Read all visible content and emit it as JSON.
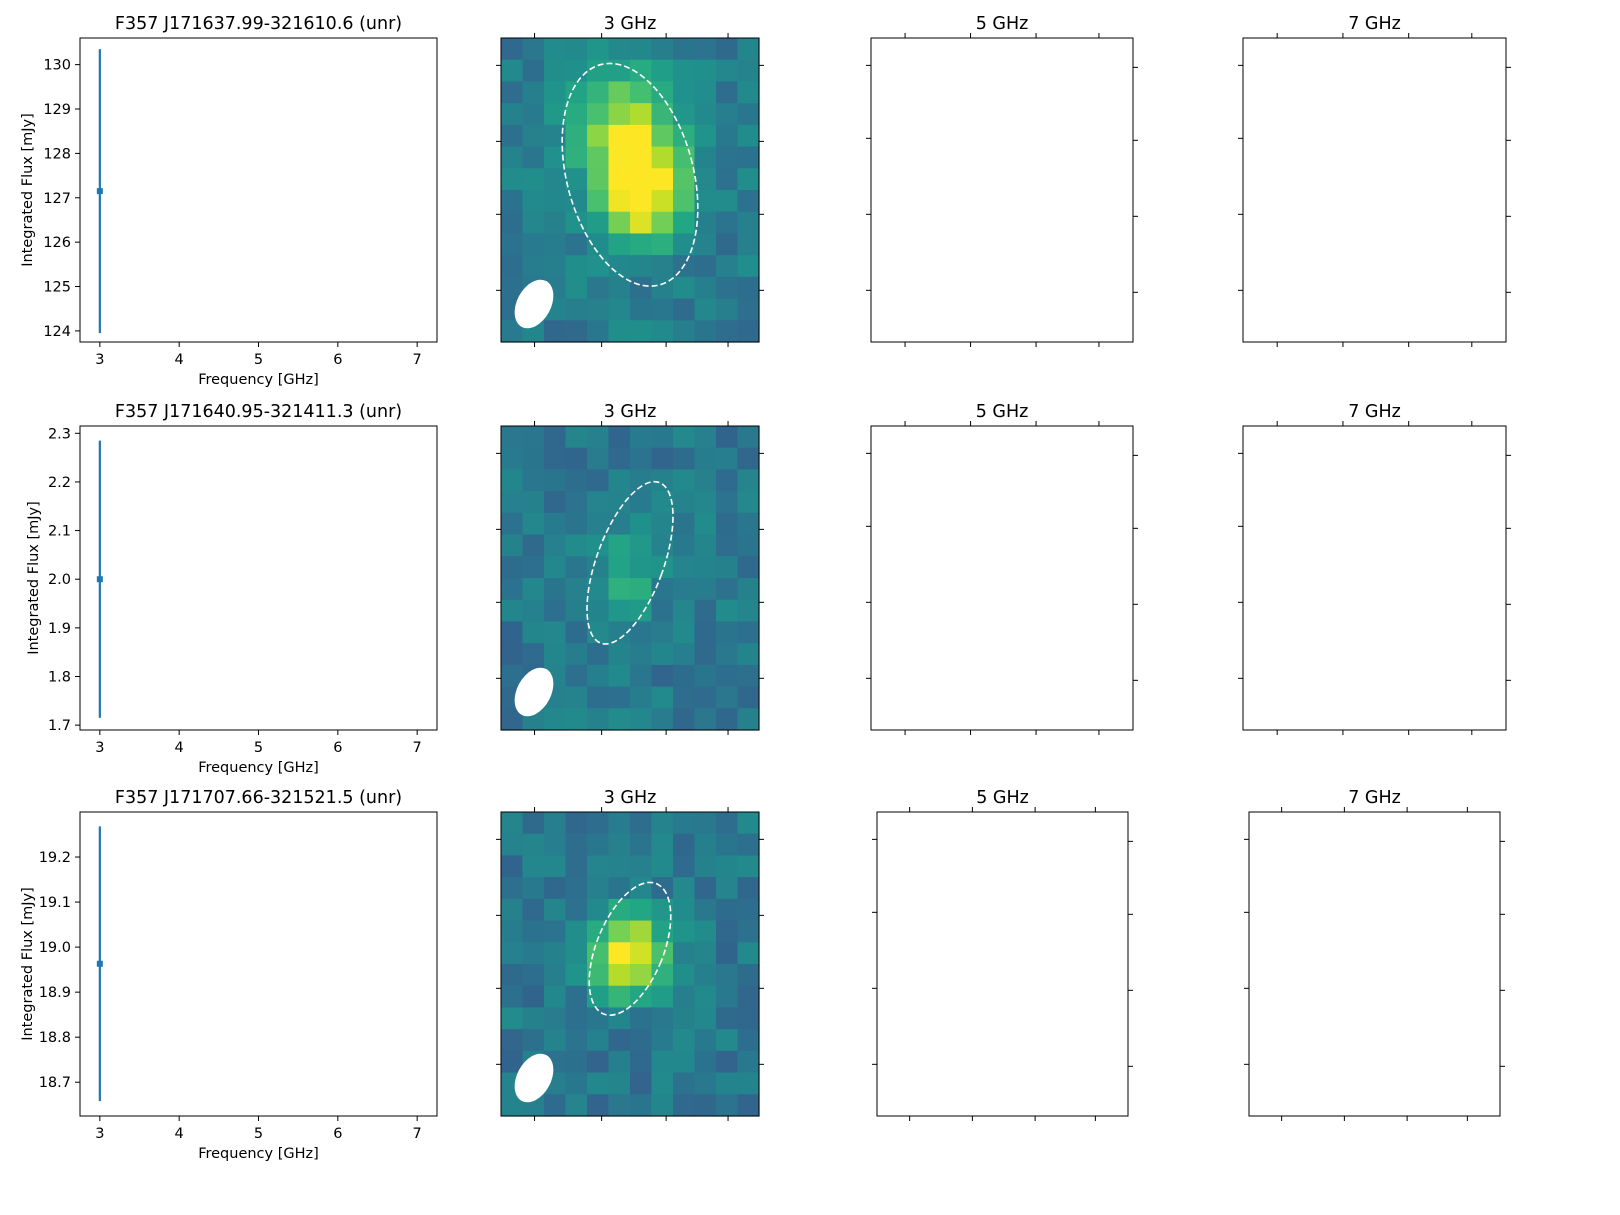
{
  "colors": {
    "series": "#1f77b4",
    "axis": "#000000",
    "ellipse": "#ffffff",
    "beam": "#ffffff"
  },
  "colormap": "viridis",
  "chart_data": [
    {
      "type": "scatter",
      "title": "F357 J171637.99-321610.6 (unr)",
      "xlabel": "Frequency [GHz]",
      "ylabel": "Integrated Flux [mJy]",
      "xlim": [
        2.75,
        7.25
      ],
      "ylim": [
        123.75,
        130.6
      ],
      "xticks": [
        "3",
        "4",
        "5",
        "6",
        "7"
      ],
      "yticks": [
        "124",
        "125",
        "126",
        "127",
        "128",
        "129",
        "130"
      ],
      "x": [
        3
      ],
      "y": [
        127.15
      ],
      "yerr": [
        3.2
      ],
      "grid": false,
      "legend": "none",
      "images": [
        {
          "title": "3 GHz",
          "colormap": "viridis",
          "has_image": true
        },
        {
          "title": "5 GHz",
          "has_image": false
        },
        {
          "title": "7 GHz",
          "has_image": false
        }
      ]
    },
    {
      "type": "scatter",
      "title": "F357 J171640.95-321411.3 (unr)",
      "xlabel": "Frequency [GHz]",
      "ylabel": "Integrated Flux [mJy]",
      "xlim": [
        2.75,
        7.25
      ],
      "ylim": [
        1.69,
        2.315
      ],
      "xticks": [
        "3",
        "4",
        "5",
        "6",
        "7"
      ],
      "yticks": [
        "1.7",
        "1.8",
        "1.9",
        "2.0",
        "2.1",
        "2.2",
        "2.3"
      ],
      "x": [
        3
      ],
      "y": [
        2.0
      ],
      "yerr": [
        0.285
      ],
      "grid": false,
      "legend": "none",
      "images": [
        {
          "title": "3 GHz",
          "colormap": "viridis",
          "has_image": true
        },
        {
          "title": "5 GHz",
          "has_image": false
        },
        {
          "title": "7 GHz",
          "has_image": false
        }
      ]
    },
    {
      "type": "scatter",
      "title": "F357 J171707.66-321521.5 (unr)",
      "xlabel": "Frequency [GHz]",
      "ylabel": "Integrated Flux [mJy]",
      "xlim": [
        2.75,
        7.25
      ],
      "ylim": [
        18.625,
        19.3
      ],
      "xticks": [
        "3",
        "4",
        "5",
        "6",
        "7"
      ],
      "yticks": [
        "18.7",
        "18.8",
        "18.9",
        "19.0",
        "19.1",
        "19.2"
      ],
      "x": [
        3
      ],
      "y": [
        18.963
      ],
      "yerr": [
        0.305
      ],
      "grid": false,
      "legend": "none",
      "images": [
        {
          "title": "3 GHz",
          "colormap": "viridis",
          "has_image": true
        },
        {
          "title": "5 GHz",
          "has_image": false
        },
        {
          "title": "7 GHz",
          "has_image": false
        }
      ]
    }
  ]
}
